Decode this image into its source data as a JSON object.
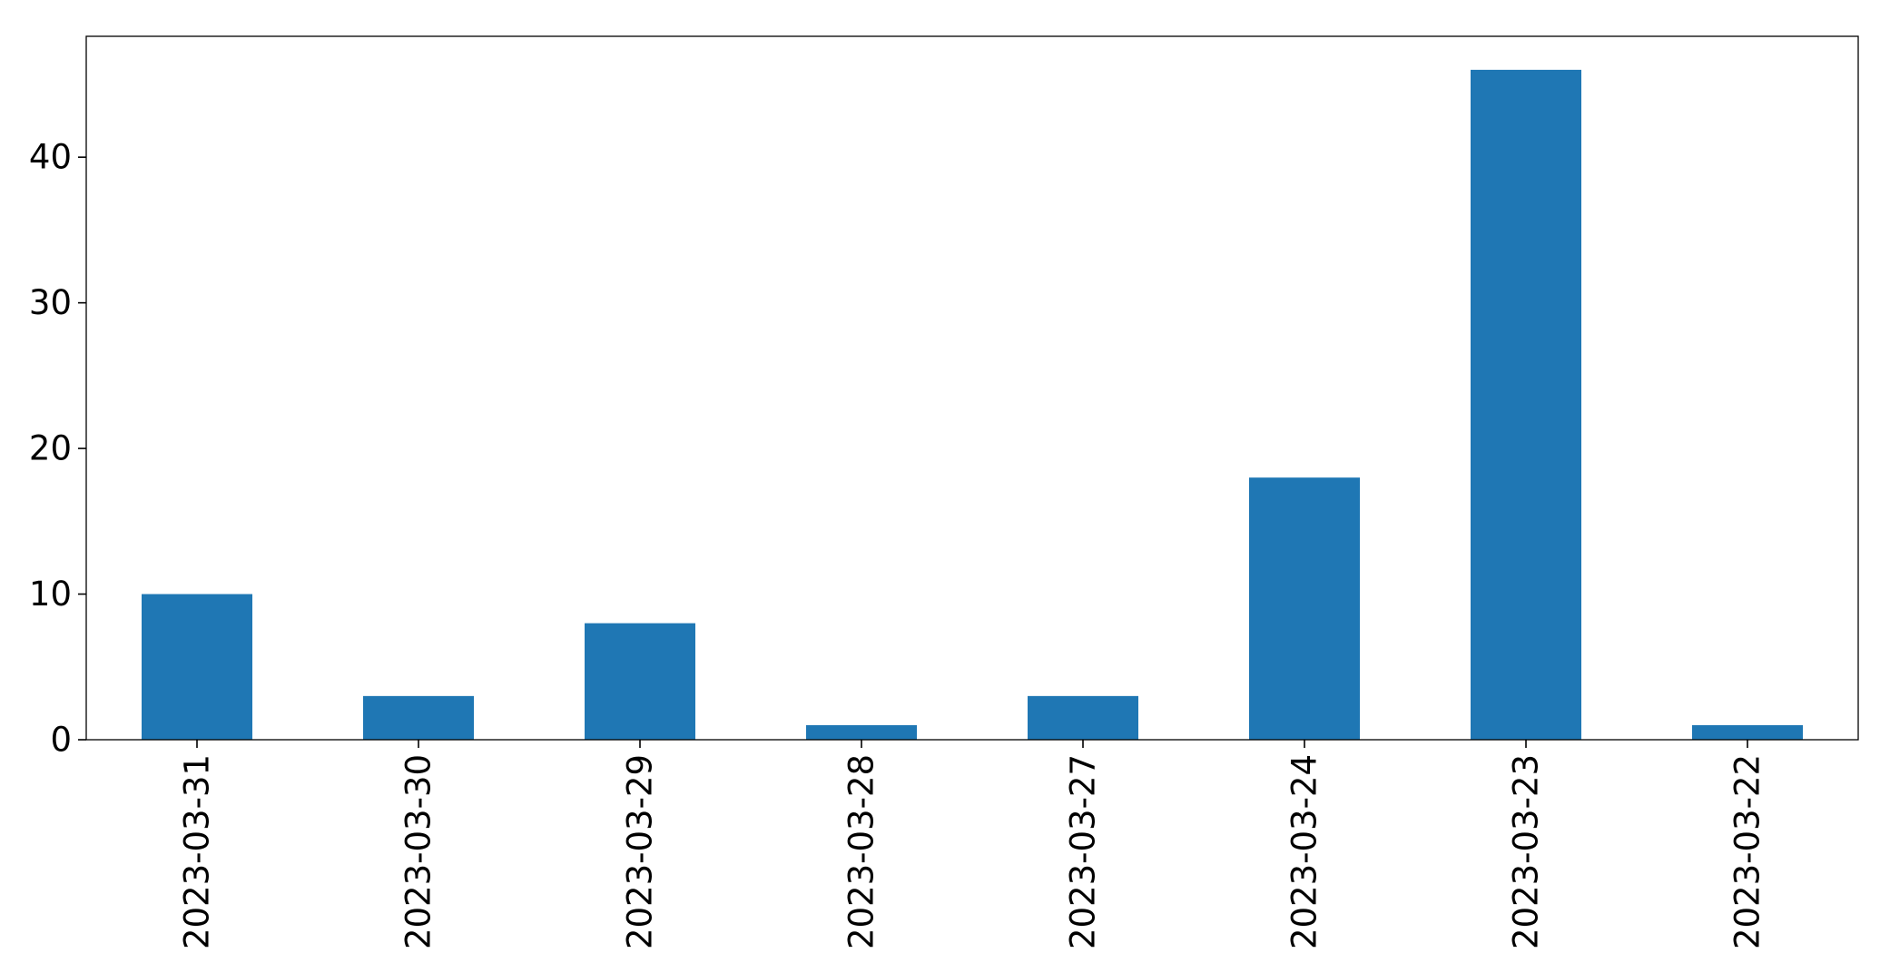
{
  "chart_data": {
    "type": "bar",
    "title": "",
    "xlabel": "",
    "ylabel": "",
    "categories": [
      "2023-03-31",
      "2023-03-30",
      "2023-03-29",
      "2023-03-28",
      "2023-03-27",
      "2023-03-24",
      "2023-03-23",
      "2023-03-22"
    ],
    "values": [
      10,
      3,
      8,
      1,
      3,
      18,
      46,
      1
    ],
    "ylim": [
      0,
      48.3
    ],
    "yticks": [
      0,
      10,
      20,
      30,
      40
    ],
    "ytick_labels": [
      "0",
      "10",
      "20",
      "30",
      "40"
    ],
    "xtick_rotation": "vertical",
    "grid": false,
    "legend": "none",
    "colors": {
      "bar": "#1f77b4",
      "axes": "#000000",
      "background": "#ffffff"
    }
  }
}
